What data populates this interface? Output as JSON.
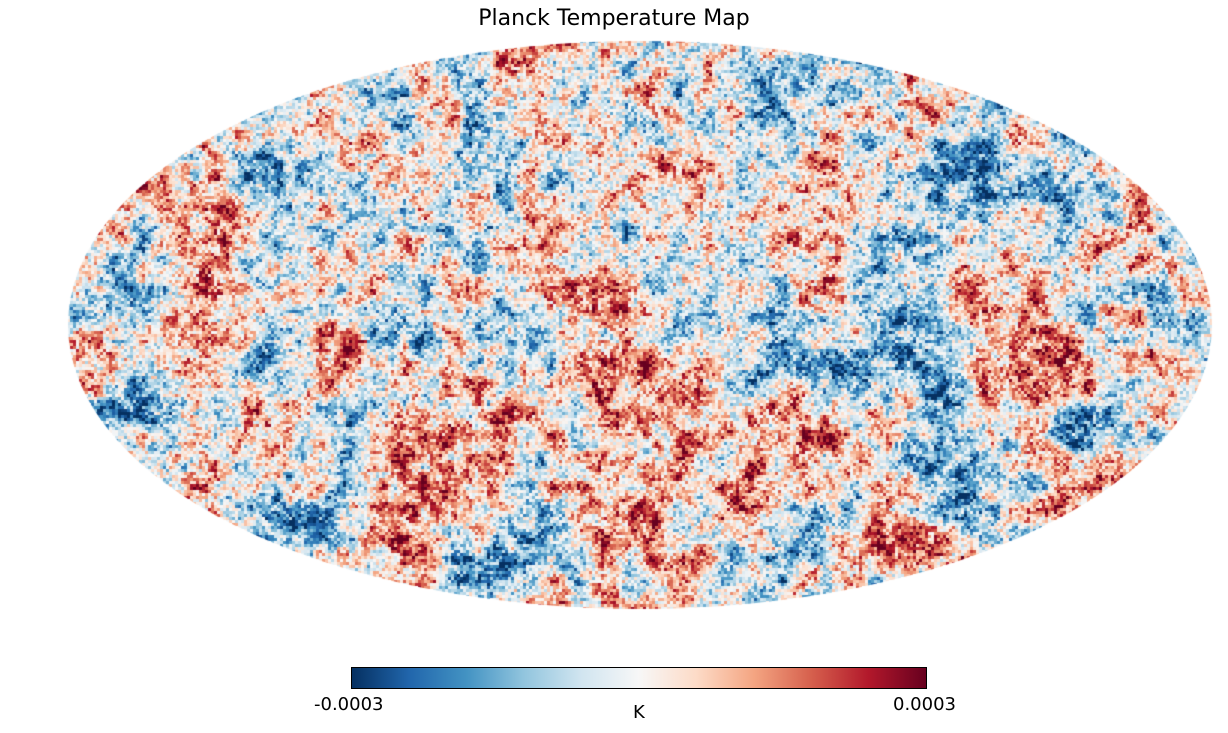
{
  "map": {
    "title": "Planck Temperature Map",
    "projection": "mollweide",
    "colormap": "RdBu_r",
    "colorbar": {
      "min_label": "-0.0003",
      "max_label": "0.0003",
      "unit": "K",
      "min": -0.0003,
      "max": 0.0003
    },
    "colormap_stops": [
      "#053061",
      "#2166ac",
      "#4393c3",
      "#92c5de",
      "#d1e5f0",
      "#f7f7f7",
      "#fddbc7",
      "#f4a582",
      "#d6604d",
      "#b2182b",
      "#67001f"
    ]
  }
}
